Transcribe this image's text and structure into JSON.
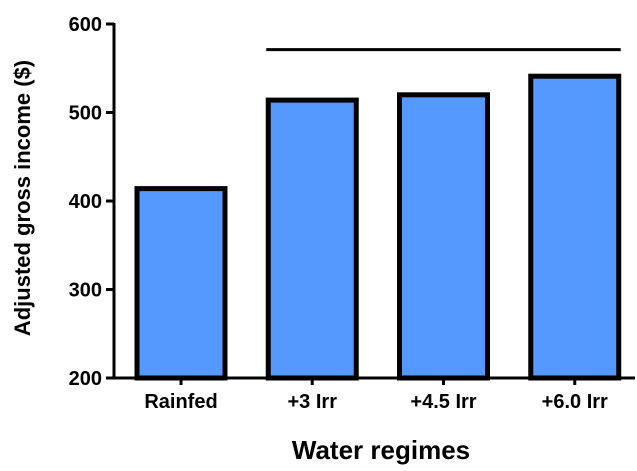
{
  "chart_data": {
    "type": "bar",
    "title": "",
    "xlabel": "Water regimes",
    "ylabel": "Adjusted gross income ($)",
    "categories": [
      "Rainfed",
      "+3 Irr",
      "+4.5 Irr",
      "+6.0 Irr"
    ],
    "values": [
      414,
      514,
      520,
      541
    ],
    "ylim": [
      200,
      600
    ],
    "yticks": [
      200,
      300,
      400,
      500,
      600
    ],
    "grid": false,
    "legend": "none",
    "annotations": [
      {
        "type": "significance-bracket",
        "from": "+3 Irr",
        "to": "+6.0 Irr",
        "y": 571
      }
    ],
    "colors": {
      "bar_fill": "#5599ff",
      "bar_stroke": "#000000",
      "axis": "#000000"
    }
  }
}
